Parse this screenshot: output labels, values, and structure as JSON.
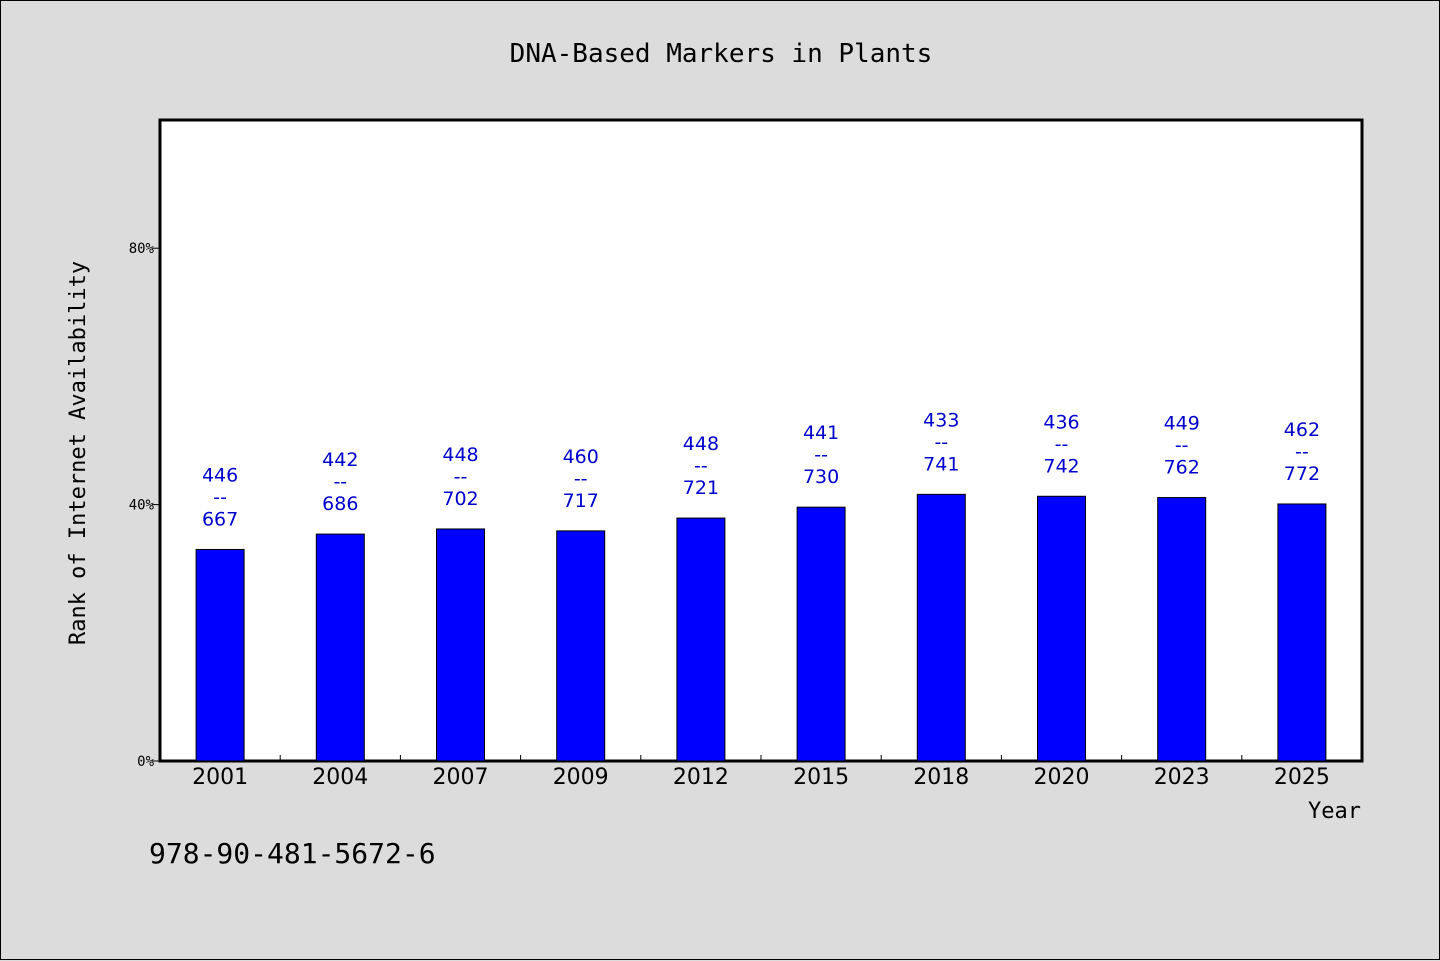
{
  "chart_data": {
    "type": "bar",
    "title": "DNA-Based Markers in Plants",
    "xlabel": "Year",
    "ylabel": "Rank of Internet Availability",
    "categories": [
      "2001",
      "2004",
      "2007",
      "2009",
      "2012",
      "2015",
      "2018",
      "2020",
      "2023",
      "2025"
    ],
    "series": [
      {
        "values": [
          33.0,
          35.4,
          36.2,
          35.9,
          37.9,
          39.6,
          41.6,
          41.3,
          41.1,
          40.1
        ],
        "color": "#0000ff"
      }
    ],
    "data_labels": [
      [
        "446",
        "--",
        "667"
      ],
      [
        "442",
        "--",
        "686"
      ],
      [
        "448",
        "--",
        "702"
      ],
      [
        "460",
        "--",
        "717"
      ],
      [
        "448",
        "--",
        "721"
      ],
      [
        "441",
        "--",
        "730"
      ],
      [
        "433",
        "--",
        "741"
      ],
      [
        "436",
        "--",
        "742"
      ],
      [
        "449",
        "--",
        "762"
      ],
      [
        "462",
        "--",
        "772"
      ]
    ],
    "label_color": "#0000cc",
    "ylim": [
      0,
      100
    ],
    "yticks": [
      0,
      40,
      80
    ],
    "ytick_labels": [
      "0%",
      "40%",
      "80%"
    ],
    "grid": false,
    "legend": "none"
  },
  "footer_text": "978-90-481-5672-6",
  "colors": {
    "background": "#dcdcdc",
    "plot_area": "#ffffff",
    "bar": "#0000ff",
    "data_label": "#0000cc"
  }
}
